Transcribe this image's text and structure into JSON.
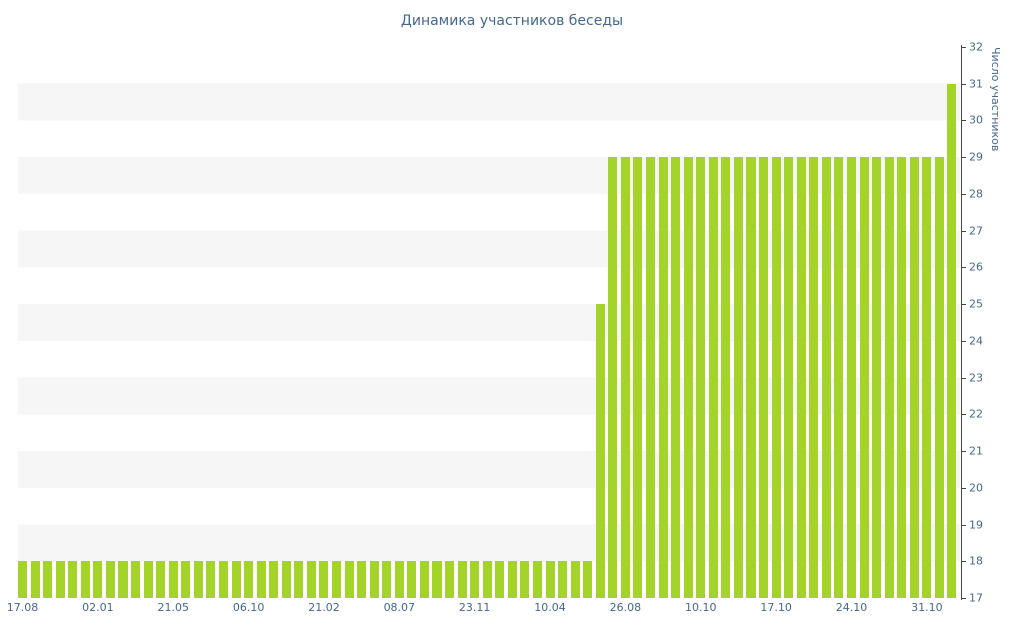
{
  "chart_data": {
    "type": "bar",
    "title": "Динамика участников беседы",
    "ylabel": "Число участников",
    "xlabel": "",
    "ylim": [
      17,
      32
    ],
    "grid": "striped-horizontal-bands",
    "legend": "none",
    "y_axis_side": "right",
    "y_ticks": [
      17,
      18,
      19,
      20,
      21,
      22,
      23,
      24,
      25,
      26,
      27,
      28,
      29,
      30,
      31,
      32
    ],
    "x_tick_labels": [
      "17.08",
      "02.01",
      "21.05",
      "06.10",
      "21.02",
      "08.07",
      "23.11",
      "10.04",
      "26.08",
      "10.10",
      "17.10",
      "24.10",
      "31.10"
    ],
    "x_tick_indices": [
      0,
      6,
      12,
      18,
      24,
      30,
      36,
      42,
      48,
      54,
      60,
      66,
      72
    ],
    "values": [
      18,
      18,
      18,
      18,
      18,
      18,
      18,
      18,
      18,
      18,
      18,
      18,
      18,
      18,
      18,
      18,
      18,
      18,
      18,
      18,
      18,
      18,
      18,
      18,
      18,
      18,
      18,
      18,
      18,
      18,
      18,
      18,
      18,
      18,
      18,
      18,
      18,
      18,
      18,
      18,
      18,
      18,
      18,
      18,
      18,
      18,
      25,
      29,
      29,
      29,
      29,
      29,
      29,
      29,
      29,
      29,
      29,
      29,
      29,
      29,
      29,
      29,
      29,
      29,
      29,
      29,
      29,
      29,
      29,
      29,
      29,
      29,
      29,
      29,
      31
    ],
    "colors": {
      "bar": "#a4d32a",
      "stripe": "#f6f6f6",
      "label": "#45688e",
      "axis": "#444444"
    }
  }
}
